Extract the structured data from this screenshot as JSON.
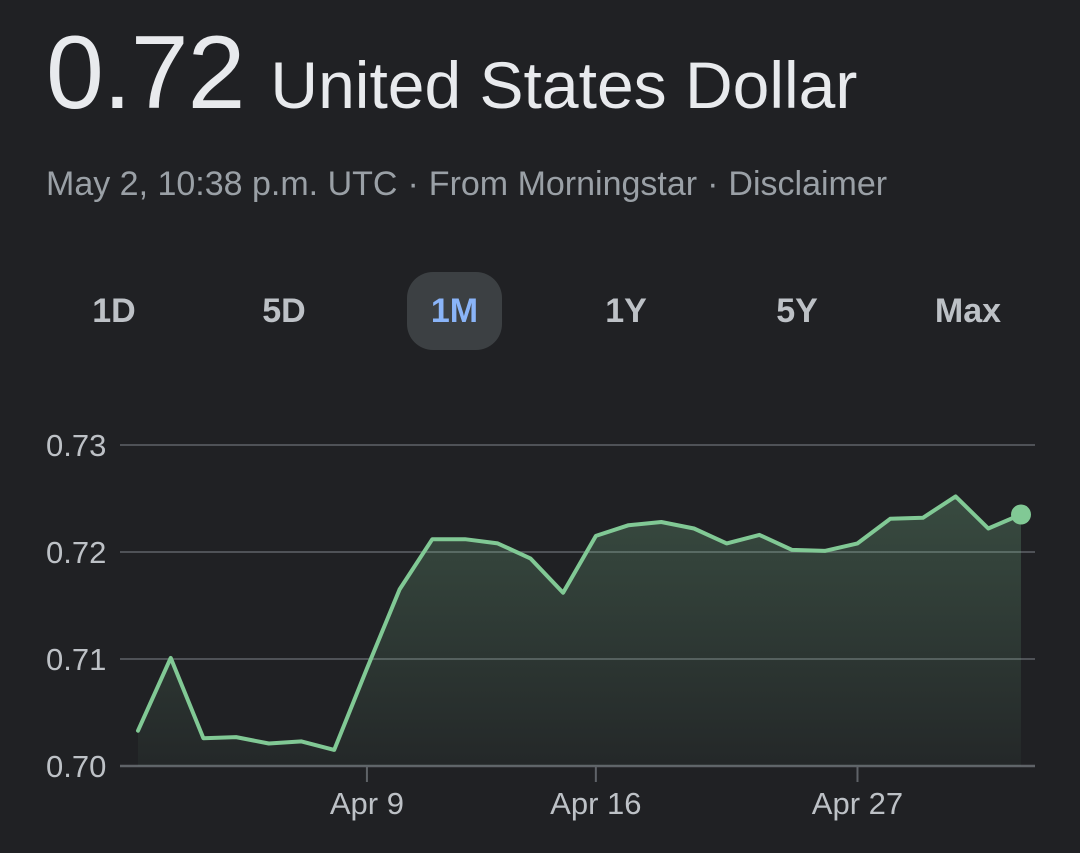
{
  "header": {
    "price": "0.72",
    "currency": "United States Dollar"
  },
  "meta": {
    "timestamp": "May 2, 10:38 p.m. UTC",
    "separator": "·",
    "source": "From Morningstar",
    "disclaimer": "Disclaimer"
  },
  "tabs": [
    {
      "label": "1D",
      "active": false
    },
    {
      "label": "5D",
      "active": false
    },
    {
      "label": "1M",
      "active": true
    },
    {
      "label": "1Y",
      "active": false
    },
    {
      "label": "5Y",
      "active": false
    },
    {
      "label": "Max",
      "active": false
    }
  ],
  "colors": {
    "line": "#81c995",
    "fill": "#81c995",
    "grid": "#5f6368",
    "accent": "#8ab4f8"
  },
  "chart_data": {
    "type": "area",
    "ylim": [
      0.7,
      0.73
    ],
    "yticks": [
      "0.73",
      "0.72",
      "0.71",
      "0.70"
    ],
    "xtick_labels": [
      "Apr 9",
      "Apr 16",
      "Apr 27"
    ],
    "xtick_index": [
      7,
      14,
      22
    ],
    "grid": true,
    "last_point_marker": true,
    "series": [
      {
        "values": [
          0.7033,
          0.7101,
          0.7026,
          0.7027,
          0.7021,
          0.7023,
          0.7015,
          0.7091,
          0.7165,
          0.7212,
          0.7212,
          0.7208,
          0.7194,
          0.7162,
          0.7215,
          0.7225,
          0.7228,
          0.7222,
          0.7208,
          0.7216,
          0.7202,
          0.7201,
          0.7208,
          0.7231,
          0.7232,
          0.7252,
          0.7222,
          0.7235
        ]
      }
    ]
  }
}
